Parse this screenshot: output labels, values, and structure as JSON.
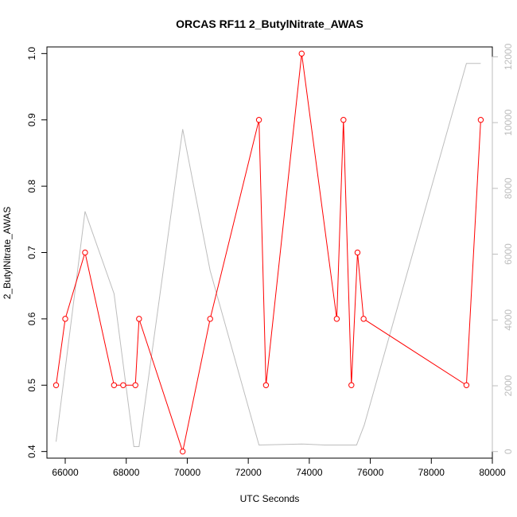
{
  "chart_data": {
    "type": "line",
    "title": "ORCAS RF11 2_ButylNitrate_AWAS",
    "xlabel": "UTC Seconds",
    "ylabel": "2_ButylNitrate_AWAS",
    "xlim": [
      65400,
      80000
    ],
    "ylim": [
      0.39,
      1.01
    ],
    "y2lim": [
      -200,
      12300
    ],
    "x_ticks": [
      "66000",
      "68000",
      "70000",
      "72000",
      "74000",
      "76000",
      "78000",
      "80000"
    ],
    "y_ticks": [
      "0.4",
      "0.5",
      "0.6",
      "0.7",
      "0.8",
      "0.9",
      "1.0"
    ],
    "y2_ticks": [
      "0",
      "2000",
      "4000",
      "6000",
      "8000",
      "10000",
      "12000"
    ],
    "grid": false,
    "series": [
      {
        "axis": "left",
        "color": "#ff0000",
        "marker": "open-circle",
        "points": [
          [
            65700,
            0.5
          ],
          [
            66000,
            0.6
          ],
          [
            66650,
            0.7
          ],
          [
            67600,
            0.5
          ],
          [
            67900,
            0.5
          ],
          [
            68300,
            0.5
          ],
          [
            68420,
            0.6
          ],
          [
            69850,
            0.4
          ],
          [
            70750,
            0.6
          ],
          [
            72350,
            0.9
          ],
          [
            72580,
            0.5
          ],
          [
            73750,
            1.0
          ],
          [
            74900,
            0.6
          ],
          [
            75120,
            0.9
          ],
          [
            75380,
            0.5
          ],
          [
            75580,
            0.7
          ],
          [
            75780,
            0.6
          ],
          [
            79150,
            0.5
          ],
          [
            79620,
            0.9
          ]
        ]
      },
      {
        "axis": "right",
        "color": "#bdbdbd",
        "marker": "none",
        "points": [
          [
            65700,
            300
          ],
          [
            66650,
            7300
          ],
          [
            67600,
            4800
          ],
          [
            68250,
            150
          ],
          [
            68420,
            150
          ],
          [
            69850,
            9800
          ],
          [
            70750,
            5500
          ],
          [
            72350,
            200
          ],
          [
            73750,
            230
          ],
          [
            74500,
            200
          ],
          [
            75550,
            200
          ],
          [
            75800,
            800
          ],
          [
            79150,
            11800
          ],
          [
            79620,
            11800
          ]
        ]
      }
    ]
  }
}
